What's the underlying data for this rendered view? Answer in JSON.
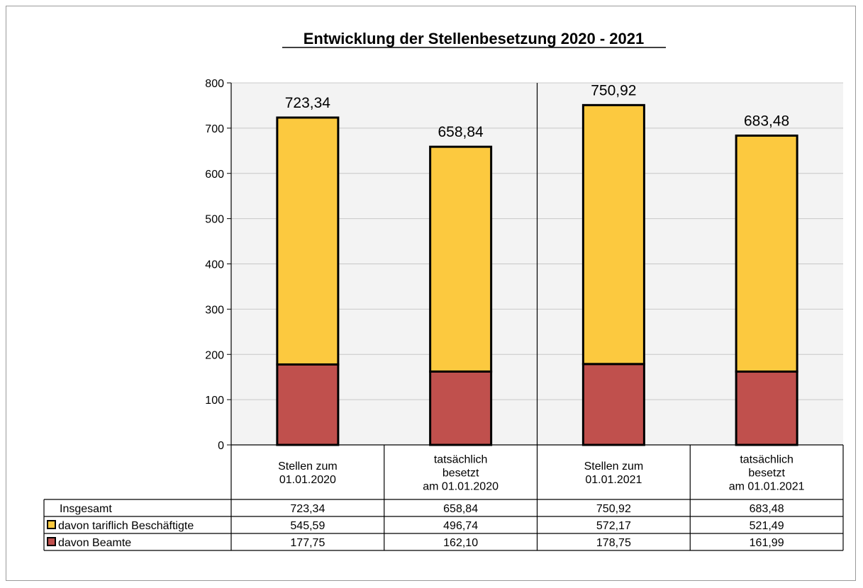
{
  "chart_data": {
    "type": "bar",
    "stacked": true,
    "title": "Entwicklung der Stellenbesetzung 2020 - 2021",
    "categories": [
      [
        "Stellen zum",
        "01.01.2020"
      ],
      [
        "tatsächlich",
        "besetzt",
        "am 01.01.2020"
      ],
      [
        "Stellen zum",
        "01.01.2021"
      ],
      [
        "tatsächlich",
        "besetzt",
        "am 01.01.2021"
      ]
    ],
    "ylim": [
      0,
      800
    ],
    "yticks": [
      0,
      100,
      200,
      300,
      400,
      500,
      600,
      700,
      800
    ],
    "grid": true,
    "series": [
      {
        "name": "davon Beamte",
        "color": "#c0504d",
        "values": [
          177.75,
          162.1,
          178.75,
          161.99
        ]
      },
      {
        "name": "davon tariflich Beschäftigte",
        "color": "#fcc93f",
        "values": [
          545.59,
          496.74,
          572.17,
          521.49
        ]
      }
    ],
    "totals": [
      723.34,
      658.84,
      750.92,
      683.48
    ],
    "total_labels": [
      "723,34",
      "658,84",
      "750,92",
      "683,48"
    ],
    "table": {
      "rows": [
        {
          "label": "Insgesamt",
          "values": [
            "723,34",
            "658,84",
            "750,92",
            "683,48"
          ]
        },
        {
          "label": "davon tariflich Beschäftigte",
          "values": [
            "545,59",
            "496,74",
            "572,17",
            "521,49"
          ]
        },
        {
          "label": "davon Beamte",
          "values": [
            "177,75",
            "162,10",
            "178,75",
            "161,99"
          ]
        }
      ]
    }
  }
}
